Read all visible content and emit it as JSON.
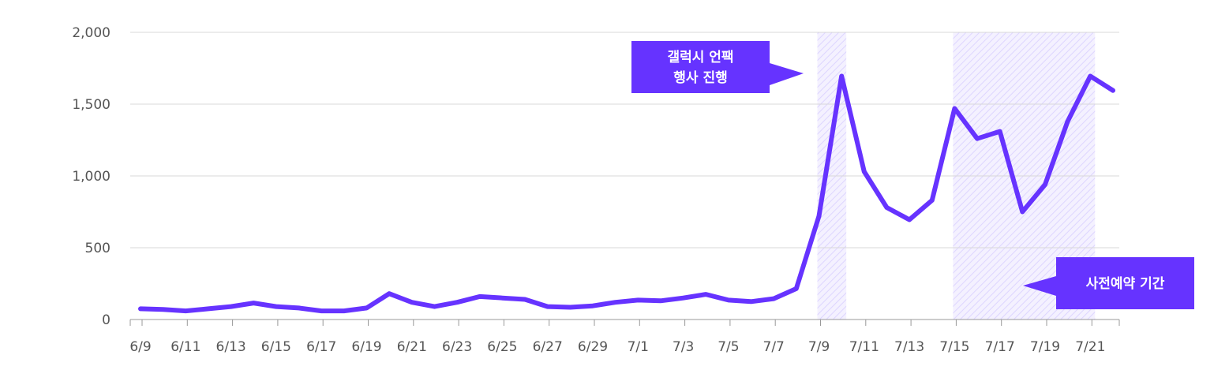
{
  "chart_data": {
    "type": "line",
    "x": [
      "6/9",
      "6/10",
      "6/11",
      "6/12",
      "6/13",
      "6/14",
      "6/15",
      "6/16",
      "6/17",
      "6/18",
      "6/19",
      "6/20",
      "6/21",
      "6/22",
      "6/23",
      "6/24",
      "6/25",
      "6/26",
      "6/27",
      "6/28",
      "6/29",
      "6/30",
      "7/1",
      "7/2",
      "7/3",
      "7/4",
      "7/5",
      "7/6",
      "7/7",
      "7/8",
      "7/9",
      "7/10",
      "7/11",
      "7/12",
      "7/13",
      "7/14",
      "7/15",
      "7/16",
      "7/17",
      "7/18",
      "7/19",
      "7/20",
      "7/21",
      "7/22"
    ],
    "x_tick_labels": [
      "6/9",
      "6/11",
      "6/13",
      "6/15",
      "6/17",
      "6/19",
      "6/21",
      "6/23",
      "6/25",
      "6/27",
      "6/29",
      "7/1",
      "7/3",
      "7/5",
      "7/7",
      "7/9",
      "7/11",
      "7/13",
      "7/15",
      "7/17",
      "7/19",
      "7/21"
    ],
    "series": [
      {
        "values": [
          75,
          70,
          60,
          75,
          90,
          115,
          90,
          80,
          60,
          60,
          80,
          180,
          120,
          90,
          120,
          160,
          150,
          140,
          90,
          85,
          95,
          120,
          135,
          130,
          150,
          175,
          135,
          125,
          145,
          215,
          720,
          1695,
          1030,
          780,
          695,
          830,
          1470,
          1260,
          1310,
          750,
          940,
          1380,
          1695,
          1595
        ]
      }
    ],
    "y_ticks": [
      "0",
      "500",
      "1,000",
      "1,500",
      "2,000"
    ],
    "ylim": [
      0,
      2000
    ],
    "grid": true,
    "colors": {
      "line": "#6633ff",
      "shade": "#e8e2ff",
      "grid": "#d8d8d8",
      "axis": "#999999"
    },
    "shaded_ranges": [
      [
        "7/9",
        "7/10"
      ],
      [
        "7/15",
        "7/21"
      ]
    ],
    "annotations": [
      {
        "lines": [
          "갤럭시 언팩",
          "행사 진행"
        ],
        "target": "7/9"
      },
      {
        "lines": [
          "사전예약 기간"
        ],
        "target": "7/18"
      }
    ]
  }
}
